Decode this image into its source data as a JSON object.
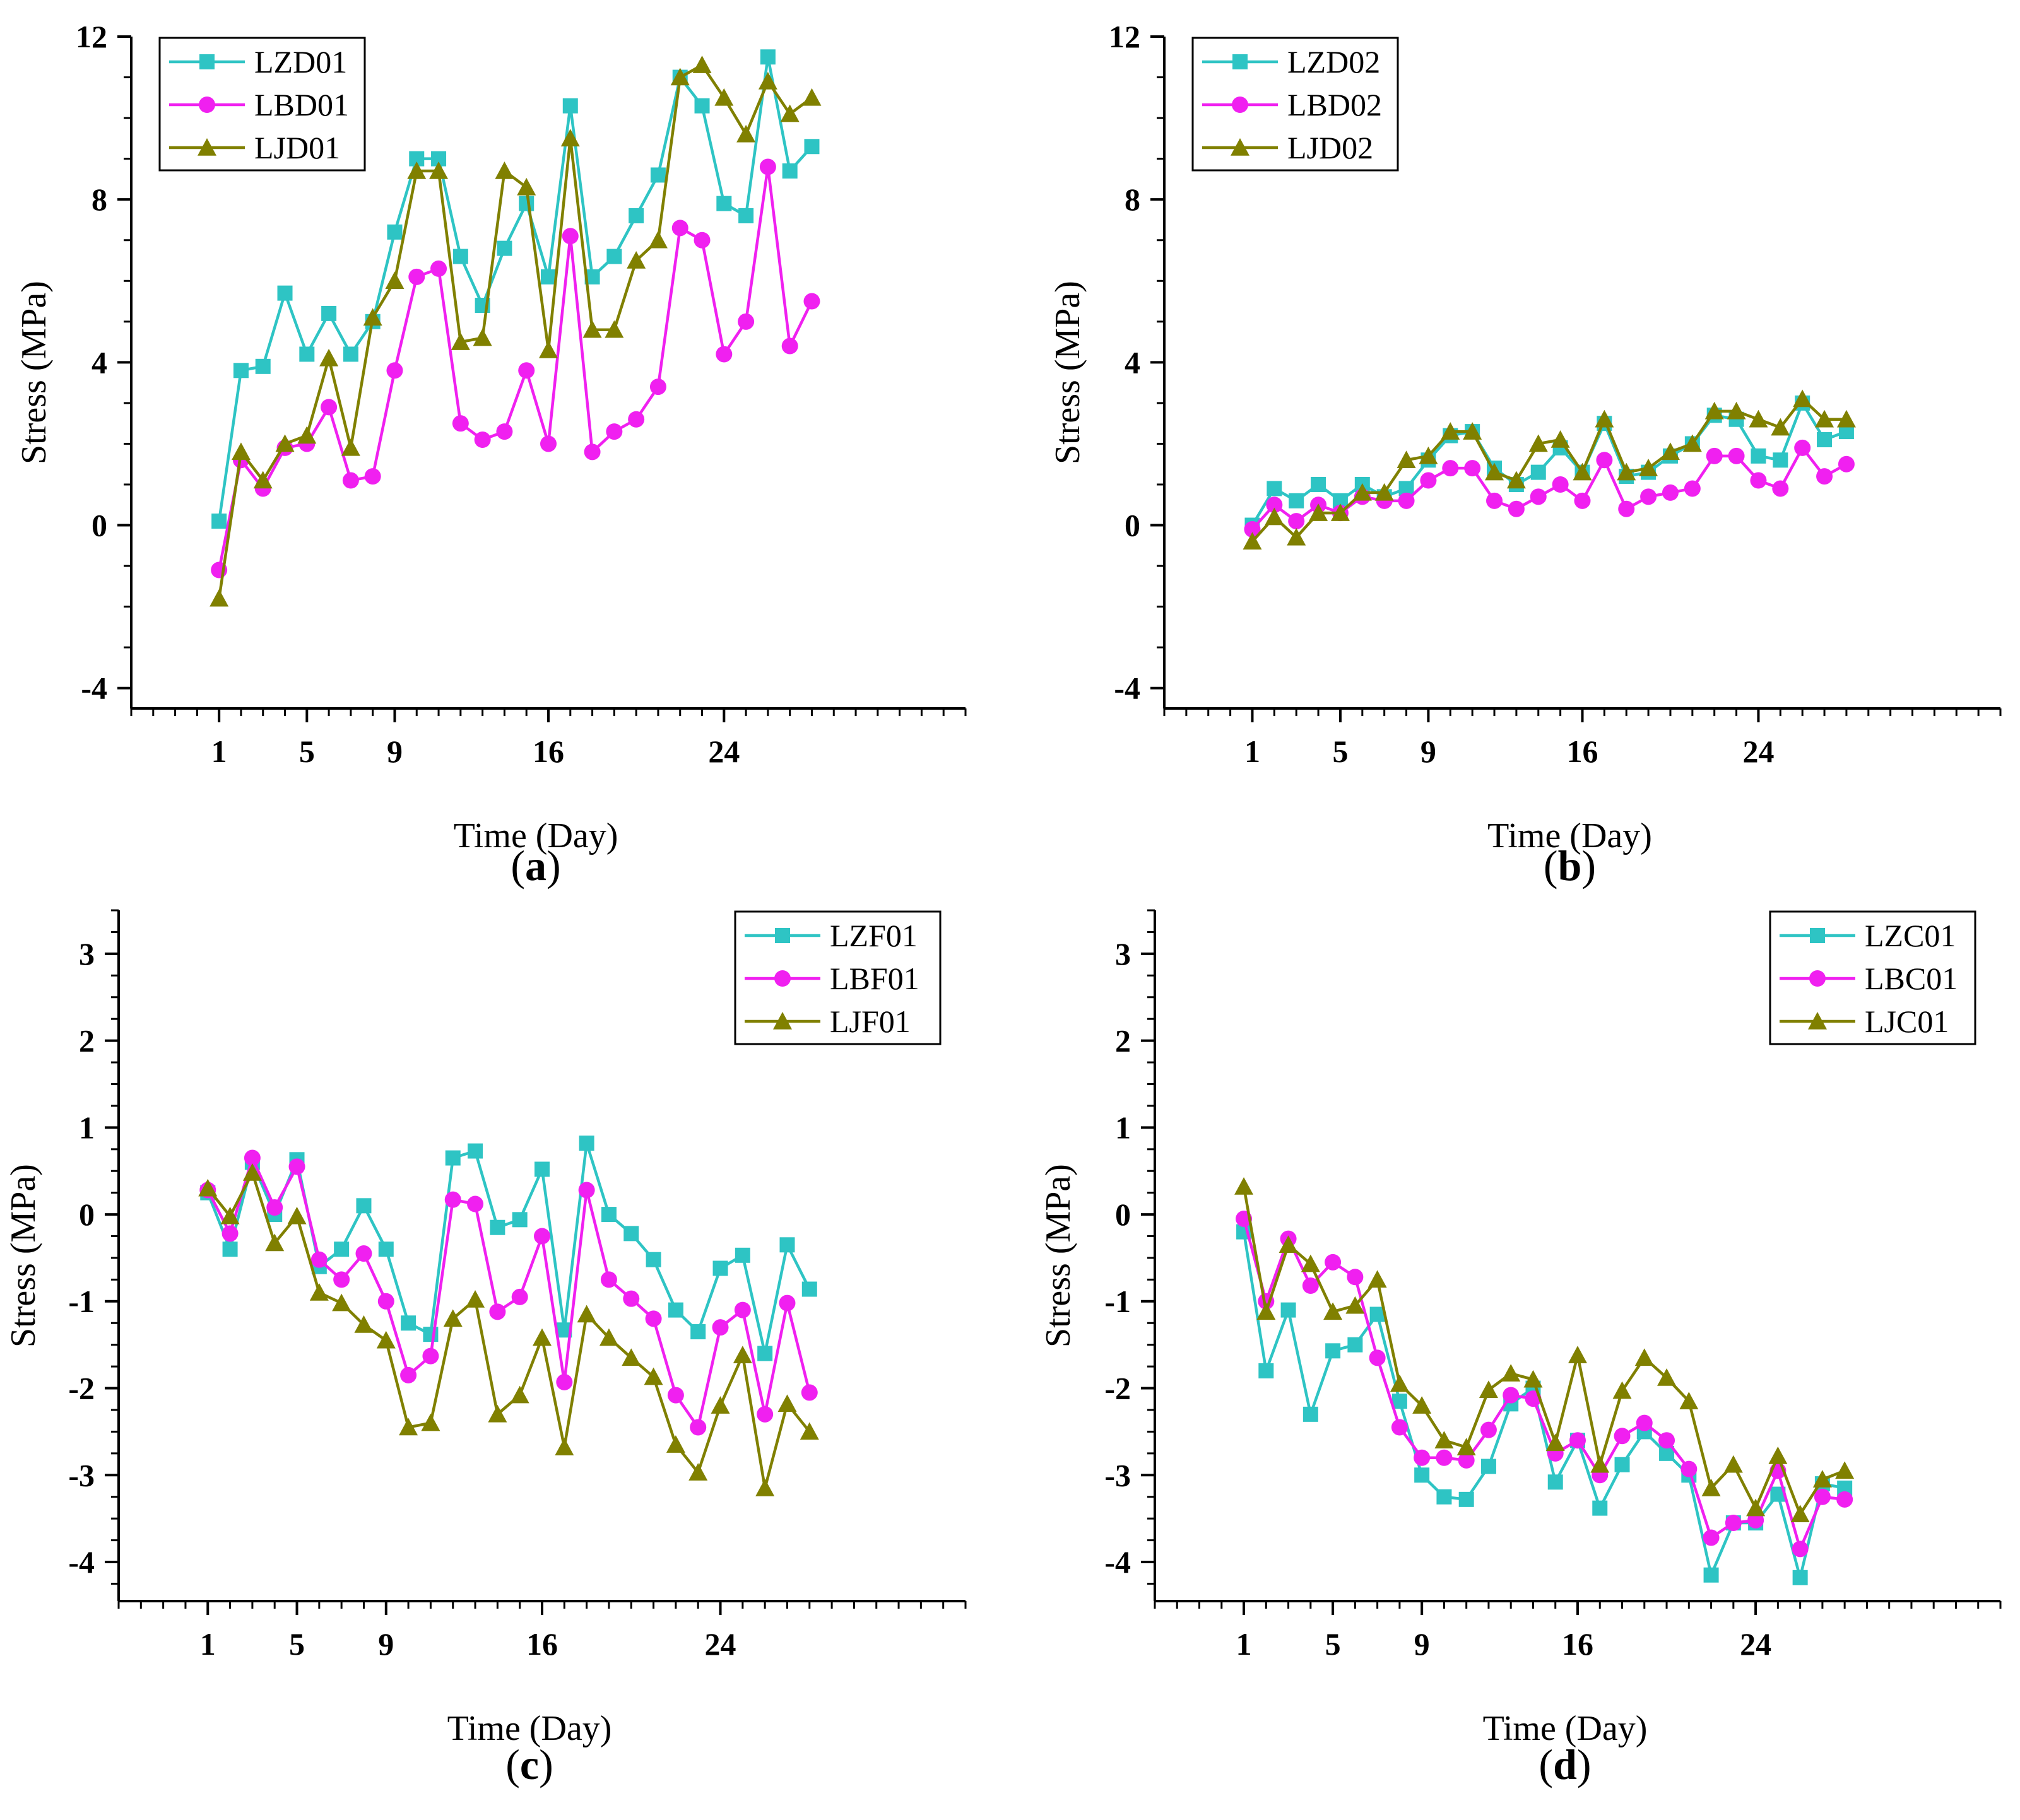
{
  "figure": {
    "panels": [
      {
        "id": "a",
        "panel_label": "a"
      },
      {
        "id": "b",
        "panel_label": "b"
      },
      {
        "id": "c",
        "panel_label": "c"
      },
      {
        "id": "d",
        "panel_label": "d"
      }
    ]
  },
  "chart_data": [
    {
      "type": "line",
      "panel_label": "a",
      "xlabel": "Time (Day)",
      "ylabel": "Stress (MPa)",
      "xlim": [
        -3,
        35
      ],
      "ylim": [
        -4.5,
        12
      ],
      "xticks": [
        1,
        5,
        9,
        16,
        24
      ],
      "xtick_positions": [
        1,
        5,
        9,
        16,
        24
      ],
      "yticks": [
        -4,
        0,
        4,
        8,
        12
      ],
      "grid": false,
      "legend_position": "top-left",
      "x": [
        1,
        2,
        3,
        4,
        5,
        6,
        7,
        8,
        9,
        10,
        11,
        12,
        13,
        14,
        15,
        16,
        17,
        18,
        19,
        20,
        21,
        22,
        23,
        24,
        25,
        26,
        27,
        28
      ],
      "series": [
        {
          "name": "LZD01",
          "color": "#2EC4C4",
          "marker": "square",
          "values": [
            0.1,
            3.8,
            3.9,
            5.7,
            4.2,
            5.2,
            4.2,
            5.0,
            7.2,
            9.0,
            9.0,
            6.6,
            5.4,
            6.8,
            7.9,
            6.1,
            10.3,
            6.1,
            6.6,
            7.6,
            8.6,
            11.0,
            10.3,
            7.9,
            7.6,
            11.5,
            8.7,
            9.3
          ]
        },
        {
          "name": "LBD01",
          "color": "#F020F0",
          "marker": "circle",
          "values": [
            -1.1,
            1.6,
            0.9,
            1.9,
            2.0,
            2.9,
            1.1,
            1.2,
            3.8,
            6.1,
            6.3,
            2.5,
            2.1,
            2.3,
            3.8,
            2.0,
            7.1,
            1.8,
            2.3,
            2.6,
            3.4,
            7.3,
            7.0,
            4.2,
            5.0,
            8.8,
            4.4,
            5.5
          ]
        },
        {
          "name": "LJD01",
          "color": "#808000",
          "marker": "triangle",
          "values": [
            -1.8,
            1.8,
            1.1,
            2.0,
            2.2,
            4.1,
            1.9,
            5.1,
            6.0,
            8.7,
            8.7,
            4.5,
            4.6,
            8.7,
            8.3,
            4.3,
            9.5,
            4.8,
            4.8,
            6.5,
            7.0,
            11.0,
            11.3,
            10.5,
            9.6,
            10.9,
            10.1,
            10.5
          ]
        }
      ]
    },
    {
      "type": "line",
      "panel_label": "b",
      "xlabel": "Time (Day)",
      "ylabel": "Stress (MPa)",
      "xlim": [
        -3,
        35
      ],
      "ylim": [
        -4.5,
        12
      ],
      "xticks": [
        1,
        5,
        9,
        16,
        24
      ],
      "xtick_positions": [
        1,
        5,
        9,
        16,
        24
      ],
      "yticks": [
        -4,
        0,
        4,
        8,
        12
      ],
      "grid": false,
      "legend_position": "top-left",
      "x": [
        1,
        2,
        3,
        4,
        5,
        6,
        7,
        8,
        9,
        10,
        11,
        12,
        13,
        14,
        15,
        16,
        17,
        18,
        19,
        20,
        21,
        22,
        23,
        24,
        25,
        26,
        27,
        28
      ],
      "series": [
        {
          "name": "LZD02",
          "color": "#2EC4C4",
          "marker": "square",
          "values": [
            0.0,
            0.9,
            0.6,
            1.0,
            0.6,
            1.0,
            0.7,
            0.9,
            1.6,
            2.2,
            2.3,
            1.4,
            1.0,
            1.3,
            1.9,
            1.3,
            2.5,
            1.2,
            1.3,
            1.7,
            2.0,
            2.7,
            2.6,
            1.7,
            1.6,
            3.0,
            2.1,
            2.3
          ]
        },
        {
          "name": "LBD02",
          "color": "#F020F0",
          "marker": "circle",
          "values": [
            -0.1,
            0.5,
            0.1,
            0.5,
            0.3,
            0.7,
            0.6,
            0.6,
            1.1,
            1.4,
            1.4,
            0.6,
            0.4,
            0.7,
            1.0,
            0.6,
            1.6,
            0.4,
            0.7,
            0.8,
            0.9,
            1.7,
            1.7,
            1.1,
            0.9,
            1.9,
            1.2,
            1.5
          ]
        },
        {
          "name": "LJD02",
          "color": "#808000",
          "marker": "triangle",
          "values": [
            -0.4,
            0.2,
            -0.3,
            0.3,
            0.3,
            0.8,
            0.8,
            1.6,
            1.7,
            2.3,
            2.3,
            1.3,
            1.1,
            2.0,
            2.1,
            1.3,
            2.6,
            1.3,
            1.4,
            1.8,
            2.0,
            2.8,
            2.8,
            2.6,
            2.4,
            3.1,
            2.6,
            2.6
          ]
        }
      ]
    },
    {
      "type": "line",
      "panel_label": "c",
      "xlabel": "Time (Day)",
      "ylabel": "Stress (MPa)",
      "xlim": [
        -3,
        35
      ],
      "ylim": [
        -4.45,
        3.5
      ],
      "xticks": [
        1,
        5,
        9,
        16,
        24
      ],
      "xtick_positions": [
        1,
        5,
        9,
        16,
        24
      ],
      "yticks": [
        -4,
        -3,
        -2,
        -1,
        0,
        1,
        2,
        3
      ],
      "grid": false,
      "legend_position": "top-right",
      "x": [
        1,
        2,
        3,
        4,
        5,
        6,
        7,
        8,
        9,
        10,
        11,
        12,
        13,
        14,
        15,
        16,
        17,
        18,
        19,
        20,
        21,
        22,
        23,
        24,
        25,
        26,
        27,
        28
      ],
      "series": [
        {
          "name": "LZF01",
          "color": "#2EC4C4",
          "marker": "square",
          "values": [
            0.25,
            -0.4,
            0.6,
            0.0,
            0.63,
            -0.6,
            -0.4,
            0.1,
            -0.4,
            -1.25,
            -1.38,
            0.65,
            0.73,
            -0.15,
            -0.06,
            0.52,
            -1.33,
            0.82,
            0.0,
            -0.22,
            -0.52,
            -1.1,
            -1.35,
            -0.62,
            -0.47,
            -1.6,
            -0.35,
            -0.86
          ]
        },
        {
          "name": "LBF01",
          "color": "#F020F0",
          "marker": "circle",
          "values": [
            0.28,
            -0.22,
            0.65,
            0.08,
            0.55,
            -0.52,
            -0.75,
            -0.45,
            -1.0,
            -1.85,
            -1.63,
            0.17,
            0.12,
            -1.12,
            -0.95,
            -0.25,
            -1.93,
            0.28,
            -0.75,
            -0.97,
            -1.2,
            -2.08,
            -2.45,
            -1.3,
            -1.1,
            -2.3,
            -1.02,
            -2.05
          ]
        },
        {
          "name": "LJF01",
          "color": "#808000",
          "marker": "triangle",
          "values": [
            0.3,
            -0.02,
            0.48,
            -0.33,
            -0.02,
            -0.9,
            -1.02,
            -1.27,
            -1.45,
            -2.45,
            -2.4,
            -1.2,
            -0.98,
            -2.3,
            -2.08,
            -1.42,
            -2.68,
            -1.15,
            -1.42,
            -1.65,
            -1.87,
            -2.65,
            -2.97,
            -2.2,
            -1.62,
            -3.15,
            -2.18,
            -2.5
          ]
        }
      ]
    },
    {
      "type": "line",
      "panel_label": "d",
      "xlabel": "Time (Day)",
      "ylabel": "Stress (MPa)",
      "xlim": [
        -3,
        35
      ],
      "ylim": [
        -4.45,
        3.5
      ],
      "xticks": [
        1,
        5,
        9,
        16,
        24
      ],
      "xtick_positions": [
        1,
        5,
        9,
        16,
        24
      ],
      "yticks": [
        -4,
        -3,
        -2,
        -1,
        0,
        1,
        2,
        3
      ],
      "grid": false,
      "legend_position": "top-right",
      "x": [
        1,
        2,
        3,
        4,
        5,
        6,
        7,
        8,
        9,
        10,
        11,
        12,
        13,
        14,
        15,
        16,
        17,
        18,
        19,
        20,
        21,
        22,
        23,
        24,
        25,
        26,
        27,
        28
      ],
      "series": [
        {
          "name": "LZC01",
          "color": "#2EC4C4",
          "marker": "square",
          "values": [
            -0.2,
            -1.8,
            -1.1,
            -2.3,
            -1.57,
            -1.5,
            -1.15,
            -2.15,
            -3.0,
            -3.25,
            -3.28,
            -2.9,
            -2.18,
            -2.0,
            -3.08,
            -2.6,
            -3.38,
            -2.88,
            -2.5,
            -2.75,
            -3.0,
            -4.15,
            -3.55,
            -3.55,
            -3.22,
            -4.18,
            -3.1,
            -3.15
          ]
        },
        {
          "name": "LBC01",
          "color": "#F020F0",
          "marker": "circle",
          "values": [
            -0.05,
            -1.0,
            -0.28,
            -0.82,
            -0.55,
            -0.72,
            -1.65,
            -2.45,
            -2.8,
            -2.8,
            -2.83,
            -2.48,
            -2.08,
            -2.12,
            -2.75,
            -2.6,
            -3.0,
            -2.55,
            -2.4,
            -2.6,
            -2.93,
            -3.72,
            -3.55,
            -3.52,
            -2.95,
            -3.85,
            -3.25,
            -3.28
          ]
        },
        {
          "name": "LJC01",
          "color": "#808000",
          "marker": "triangle",
          "values": [
            0.32,
            -1.12,
            -0.35,
            -0.57,
            -1.12,
            -1.05,
            -0.75,
            -1.95,
            -2.2,
            -2.6,
            -2.68,
            -2.02,
            -1.83,
            -1.9,
            -2.63,
            -1.62,
            -2.88,
            -2.03,
            -1.65,
            -1.88,
            -2.15,
            -3.15,
            -2.88,
            -3.38,
            -2.78,
            -3.45,
            -3.05,
            -2.95
          ]
        }
      ]
    }
  ]
}
